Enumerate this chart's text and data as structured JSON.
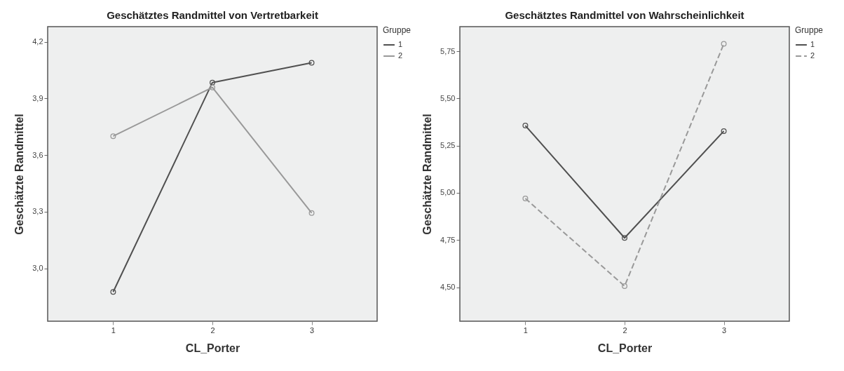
{
  "chart_data": [
    {
      "type": "line",
      "title": "Geschätztes Randmittel von Vertretbarkeit",
      "xlabel": "CL_Porter",
      "ylabel": "Geschätzte Randmittel",
      "legend_title": "Gruppe",
      "categories": [
        "1",
        "2",
        "3"
      ],
      "series": [
        {
          "name": "1",
          "color": "#505050",
          "values": [
            2.875,
            3.984,
            4.089
          ]
        },
        {
          "name": "2",
          "color": "#999999",
          "values": [
            3.7,
            3.958,
            3.293
          ]
        }
      ],
      "ylim": [
        2.72,
        4.28
      ],
      "yticks": [
        {
          "value": 3.0,
          "label": "3,0"
        },
        {
          "value": 3.3,
          "label": "3,3"
        },
        {
          "value": 3.6,
          "label": "3,6"
        },
        {
          "value": 3.9,
          "label": "3,9"
        },
        {
          "value": 4.2,
          "label": "4,2"
        }
      ],
      "grid": false,
      "legend": "top right",
      "marker": "circle",
      "line_style": "solid"
    },
    {
      "type": "line",
      "title": "Geschätztes Randmittel von Wahrscheinlichkeit",
      "xlabel": "CL_Porter",
      "ylabel": "Geschätzte Randmittel",
      "legend_title": "Gruppe",
      "categories": [
        "1",
        "2",
        "3"
      ],
      "series": [
        {
          "name": "1",
          "color": "#505050",
          "values": [
            5.356,
            4.761,
            5.327
          ]
        },
        {
          "name": "2",
          "color": "#999999",
          "values": [
            4.97,
            4.506,
            5.789
          ],
          "line_style": "dashed"
        }
      ],
      "ylim": [
        4.32,
        5.88
      ],
      "yticks": [
        {
          "value": 4.5,
          "label": "4,50"
        },
        {
          "value": 4.75,
          "label": "4,75"
        },
        {
          "value": 5.0,
          "label": "5,00"
        },
        {
          "value": 5.25,
          "label": "5,25"
        },
        {
          "value": 5.5,
          "label": "5,50"
        },
        {
          "value": 5.75,
          "label": "5,75"
        }
      ],
      "grid": false,
      "legend": "top right",
      "marker": "circle",
      "line_style": "solid"
    }
  ]
}
